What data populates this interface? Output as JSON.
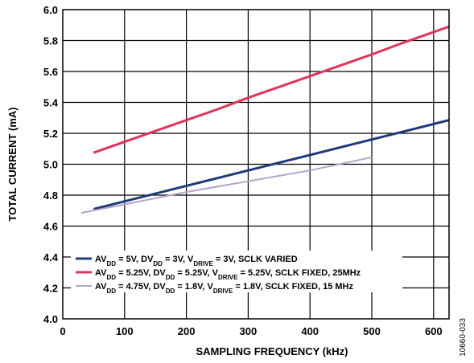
{
  "chart_data": {
    "type": "line",
    "xlabel": "SAMPLING FREQUENCY (kHz)",
    "ylabel": "TOTAL CURRENT (mA)",
    "xlim": [
      0,
      625
    ],
    "ylim": [
      4.0,
      6.0
    ],
    "x_ticks": [
      0,
      100,
      200,
      300,
      400,
      500,
      600
    ],
    "x_tick_labels": [
      "0",
      "100",
      "200",
      "300",
      "400",
      "500",
      "600"
    ],
    "y_ticks": [
      4.0,
      4.2,
      4.4,
      4.6,
      4.8,
      5.0,
      5.2,
      5.4,
      5.6,
      5.8,
      6.0
    ],
    "y_tick_labels": [
      "4.0",
      "4.2",
      "4.4",
      "4.6",
      "4.8",
      "5.0",
      "5.2",
      "5.4",
      "5.6",
      "5.8",
      "6.0"
    ],
    "grid": true,
    "legend_position": "bottom-left",
    "series": [
      {
        "name": "AVDD = 5V, DVDD = 3V, VDRIVE = 3V, SCLK VARIED",
        "legend_parts": [
          [
            "AV",
            ""
          ],
          [
            "DD",
            "sub"
          ],
          [
            " = 5V, DV",
            ""
          ],
          [
            "DD",
            "sub"
          ],
          [
            " = 3V, V",
            ""
          ],
          [
            "DRIVE",
            "sub"
          ],
          [
            " = 3V, SCLK VARIED",
            ""
          ]
        ],
        "color": "#1f3a7a",
        "stroke_width": 3,
        "x": [
          50,
          100,
          150,
          200,
          250,
          300,
          350,
          400,
          450,
          500,
          550,
          625
        ],
        "y": [
          4.71,
          4.76,
          4.81,
          4.86,
          4.91,
          4.96,
          5.01,
          5.06,
          5.11,
          5.16,
          5.21,
          5.285
        ]
      },
      {
        "name": "AVDD = 5.25V, DVDD = 5.25V, VDRIVE = 5.25V, SCLK FIXED, 25MHz",
        "legend_parts": [
          [
            "AV",
            ""
          ],
          [
            "DD",
            "sub"
          ],
          [
            " = 5.25V, DV",
            ""
          ],
          [
            "DD",
            "sub"
          ],
          [
            " = 5.25V, V",
            ""
          ],
          [
            "DRIVE",
            "sub"
          ],
          [
            " = 5.25V, SCLK FIXED, 25MHz",
            ""
          ]
        ],
        "color": "#e0345a",
        "stroke_width": 3,
        "x": [
          50,
          100,
          150,
          200,
          250,
          300,
          350,
          400,
          450,
          500,
          550,
          625
        ],
        "y": [
          5.075,
          5.145,
          5.215,
          5.285,
          5.355,
          5.43,
          5.5,
          5.57,
          5.64,
          5.71,
          5.785,
          5.89
        ]
      },
      {
        "name": "AVDD = 4.75V, DVDD = 1.8V, VDRIVE = 1.8V, SCLK FIXED, 15 MHz",
        "legend_parts": [
          [
            "AV",
            ""
          ],
          [
            "DD",
            "sub"
          ],
          [
            " = 4.75V, DV",
            ""
          ],
          [
            "DD",
            "sub"
          ],
          [
            " = 1.8V, V",
            ""
          ],
          [
            "DRIVE",
            "sub"
          ],
          [
            " = 1.8V, SCLK FIXED, 15 MHz",
            ""
          ]
        ],
        "color": "#b3a3c9",
        "stroke_width": 2,
        "x": [
          30,
          100,
          200,
          300,
          400,
          500
        ],
        "y": [
          4.685,
          4.74,
          4.82,
          4.89,
          4.96,
          5.045
        ]
      }
    ]
  },
  "side_note": "10660-033"
}
